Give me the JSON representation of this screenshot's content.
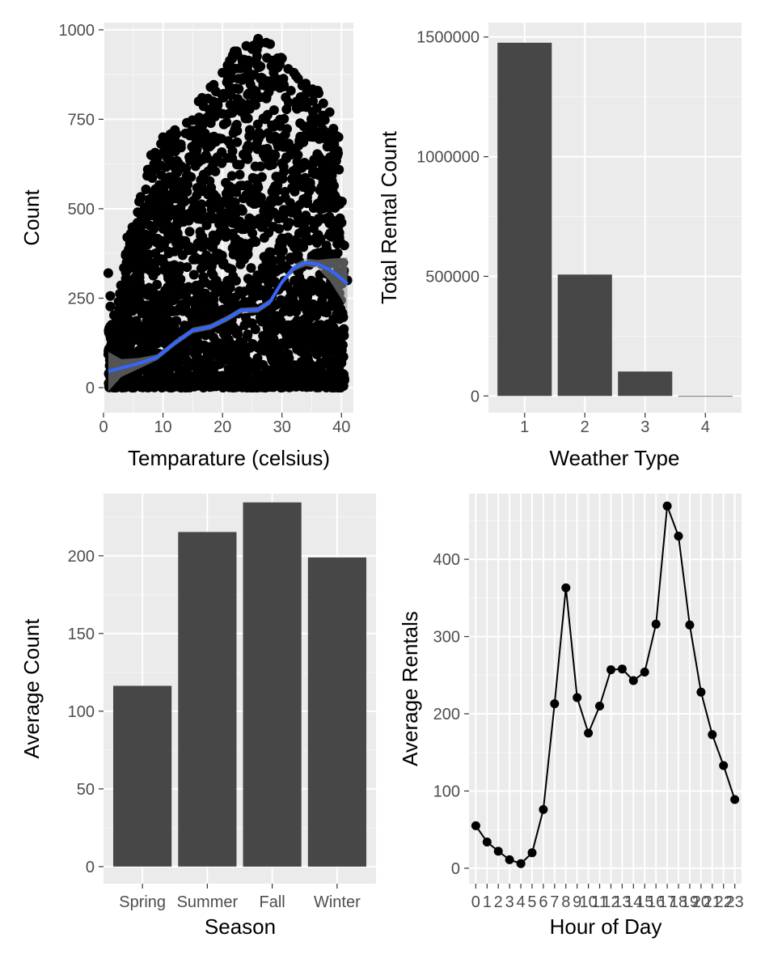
{
  "chart_data": [
    {
      "type": "scatter",
      "xlabel": "Temparature (celsius)",
      "ylabel": "Count",
      "xlim": [
        0,
        42
      ],
      "ylim": [
        -70,
        1020
      ],
      "xticks": [
        0,
        10,
        20,
        30,
        40
      ],
      "yticks": [
        0,
        250,
        500,
        750,
        1000
      ],
      "x_tick_labels": [
        "0",
        "10",
        "20",
        "30",
        "40"
      ],
      "y_tick_labels": [
        "0",
        "250",
        "500",
        "750",
        "1000"
      ],
      "point_color": "#000000",
      "smooth_color": "#3366FF",
      "band_color": "#999999",
      "scatter_envelope": [
        {
          "x": 0.8,
          "max": 320
        },
        {
          "x": 2,
          "max": 180
        },
        {
          "x": 4,
          "max": 420
        },
        {
          "x": 6,
          "max": 520
        },
        {
          "x": 8,
          "max": 650
        },
        {
          "x": 10,
          "max": 700
        },
        {
          "x": 12,
          "max": 720
        },
        {
          "x": 14,
          "max": 740
        },
        {
          "x": 16,
          "max": 800
        },
        {
          "x": 18,
          "max": 840
        },
        {
          "x": 20,
          "max": 880
        },
        {
          "x": 22,
          "max": 940
        },
        {
          "x": 24,
          "max": 955
        },
        {
          "x": 26,
          "max": 975
        },
        {
          "x": 28,
          "max": 960
        },
        {
          "x": 30,
          "max": 920
        },
        {
          "x": 32,
          "max": 880
        },
        {
          "x": 34,
          "max": 850
        },
        {
          "x": 36,
          "max": 830
        },
        {
          "x": 38,
          "max": 770
        },
        {
          "x": 39.5,
          "max": 700
        },
        {
          "x": 41,
          "max": 300
        }
      ],
      "smooth_line": [
        {
          "x": 0.8,
          "y": 45
        },
        {
          "x": 3,
          "y": 55
        },
        {
          "x": 6,
          "y": 68
        },
        {
          "x": 9,
          "y": 85
        },
        {
          "x": 12,
          "y": 125
        },
        {
          "x": 15,
          "y": 160
        },
        {
          "x": 18,
          "y": 170
        },
        {
          "x": 21,
          "y": 195
        },
        {
          "x": 23,
          "y": 215
        },
        {
          "x": 26,
          "y": 218
        },
        {
          "x": 28,
          "y": 240
        },
        {
          "x": 30,
          "y": 295
        },
        {
          "x": 32,
          "y": 335
        },
        {
          "x": 34,
          "y": 350
        },
        {
          "x": 36,
          "y": 345
        },
        {
          "x": 38,
          "y": 330
        },
        {
          "x": 40,
          "y": 305
        },
        {
          "x": 41,
          "y": 290
        }
      ],
      "band_halfwidth": [
        {
          "x": 0.8,
          "w": 55
        },
        {
          "x": 3,
          "w": 25
        },
        {
          "x": 8,
          "w": 8
        },
        {
          "x": 30,
          "w": 8
        },
        {
          "x": 36,
          "w": 12
        },
        {
          "x": 39,
          "w": 40
        },
        {
          "x": 41,
          "w": 75
        }
      ]
    },
    {
      "type": "bar",
      "xlabel": "Weather Type",
      "ylabel": "Total Rental Count",
      "categories": [
        "1",
        "2",
        "3",
        "4"
      ],
      "values": [
        1476063,
        507160,
        102089,
        164
      ],
      "ylim": [
        -70000,
        1560000
      ],
      "yticks": [
        0,
        500000,
        1000000,
        1500000
      ],
      "y_tick_labels": [
        "0",
        "500000",
        "1000000",
        "1500000"
      ],
      "bar_color": "#474747"
    },
    {
      "type": "bar",
      "xlabel": "Season",
      "ylabel": "Average Count",
      "categories": [
        "Spring",
        "Summer",
        "Fall",
        "Winter"
      ],
      "values": [
        116.3,
        215.3,
        234.4,
        198.9
      ],
      "ylim": [
        -11,
        240
      ],
      "yticks": [
        0,
        50,
        100,
        150,
        200
      ],
      "y_tick_labels": [
        "0",
        "50",
        "100",
        "150",
        "200"
      ],
      "bar_color": "#474747"
    },
    {
      "type": "line",
      "xlabel": "Hour of Day",
      "ylabel": "Average Rentals",
      "x": [
        "0",
        "1",
        "2",
        "3",
        "4",
        "5",
        "6",
        "7",
        "8",
        "9",
        "10",
        "11",
        "12",
        "13",
        "14",
        "15",
        "16",
        "17",
        "18",
        "19",
        "20",
        "21",
        "22",
        "23"
      ],
      "values": [
        55,
        34,
        22,
        11,
        6,
        20,
        76,
        213,
        363,
        221,
        175,
        210,
        257,
        258,
        243,
        254,
        316,
        469,
        430,
        315,
        228,
        173,
        133,
        89
      ],
      "ylim": [
        -20,
        485
      ],
      "yticks": [
        0,
        100,
        200,
        300,
        400
      ],
      "y_tick_labels": [
        "0",
        "100",
        "200",
        "300",
        "400"
      ],
      "line_color": "#000000"
    }
  ]
}
